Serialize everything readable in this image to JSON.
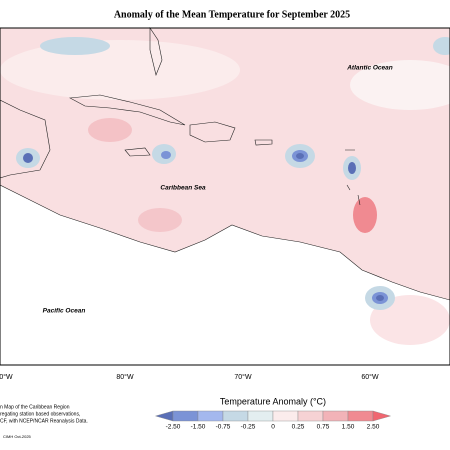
{
  "title": "Anomaly of the Mean Temperature for September 2025",
  "labels": {
    "atlantic": "Atlantic Ocean",
    "caribbean": "Caribbean Sea",
    "pacific": "Pacific Ocean"
  },
  "longitudes": [
    "0°W",
    "80°W",
    "70°W",
    "60°W"
  ],
  "legend": {
    "title": "Temperature Anomaly (°C)",
    "ticks": [
      "-2.50",
      "-1.50",
      "-0.75",
      "-0.25",
      "0",
      "0.25",
      "0.75",
      "1.50",
      "2.50"
    ],
    "colors": [
      "#5a6fb6",
      "#7b93d6",
      "#a4b8ee",
      "#c5d9e5",
      "#e3eef0",
      "#fbecec",
      "#f6d2d4",
      "#f2b3b8",
      "#f08a91",
      "#f06670"
    ]
  },
  "footnote": [
    "n Map of the Caribbean Region",
    "regating station based observations,",
    "CF, with NCEP/NCAR Reanalysis Data."
  ],
  "credit": "CIMH Oct-2025"
}
